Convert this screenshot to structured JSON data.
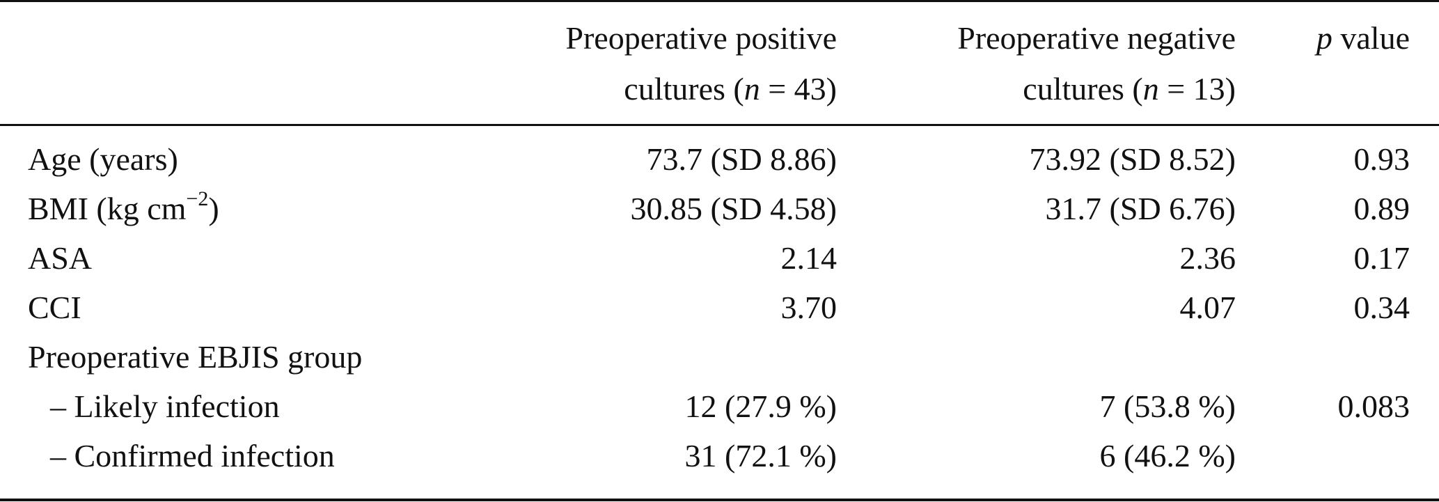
{
  "header": {
    "col1_line1": "Preoperative positive",
    "col1_line2_prefix": "cultures (",
    "col1_n": "n",
    "col1_line2_suffix": " = 43)",
    "col2_line1": "Preoperative negative",
    "col2_line2_prefix": "cultures (",
    "col2_n": "n",
    "col2_line2_suffix": " = 13)",
    "col3_p": "p",
    "col3_suffix": " value"
  },
  "rows": [
    {
      "label": "Age (years)",
      "positive": "73.7 (SD 8.86)",
      "negative": "73.92 (SD 8.52)",
      "p": "0.93"
    },
    {
      "label_prefix": "BMI (kg cm",
      "label_sup": "−2",
      "label_suffix": ")",
      "positive": "30.85 (SD 4.58)",
      "negative": "31.7 (SD 6.76)",
      "p": "0.89"
    },
    {
      "label": "ASA",
      "positive": "2.14",
      "negative": "2.36",
      "p": "0.17"
    },
    {
      "label": "CCI",
      "positive": "3.70",
      "negative": "4.07",
      "p": "0.34"
    },
    {
      "label": "Preoperative EBJIS group",
      "positive": "",
      "negative": "",
      "p": ""
    },
    {
      "label": "– Likely infection",
      "positive": "12 (27.9 %)",
      "negative": "7 (53.8 %)",
      "p": "0.083"
    },
    {
      "label": "– Confirmed infection",
      "positive": "31 (72.1 %)",
      "negative": "6 (46.2 %)",
      "p": ""
    }
  ]
}
